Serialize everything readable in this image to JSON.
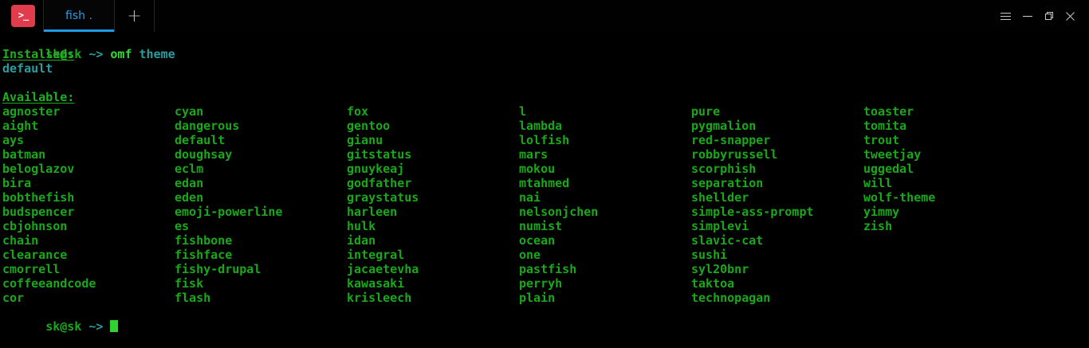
{
  "window": {
    "app_icon_glyph": ">_",
    "tab_title": "fish .",
    "new_tab_label": "+",
    "controls": {
      "menu": "menu",
      "minimize": "minimize",
      "restore": "restore",
      "close": "close"
    },
    "colors": {
      "app_icon_bg": "#e13c4c",
      "tab_text": "#2e9bdb",
      "active_tab_indicator": "#1e9be4",
      "terminal_bg": "#000000",
      "green": "#1aa81a",
      "bright_green": "#32d932",
      "teal": "#2a9d9e"
    }
  },
  "terminal": {
    "prompt": {
      "user": "sk@sk",
      "arrow": "~>"
    },
    "command": "omf",
    "command_arg": "theme",
    "installed_header": "Installed:",
    "installed_items": [
      "default"
    ],
    "available_header": "Available:",
    "theme_columns": [
      [
        "agnoster",
        "aight",
        "ays",
        "batman",
        "beloglazov",
        "bira",
        "bobthefish",
        "budspencer",
        "cbjohnson",
        "chain",
        "clearance",
        "cmorrell",
        "coffeeandcode",
        "cor"
      ],
      [
        "cyan",
        "dangerous",
        "default",
        "doughsay",
        "eclm",
        "edan",
        "eden",
        "emoji-powerline",
        "es",
        "fishbone",
        "fishface",
        "fishy-drupal",
        "fisk",
        "flash"
      ],
      [
        "fox",
        "gentoo",
        "gianu",
        "gitstatus",
        "gnuykeaj",
        "godfather",
        "graystatus",
        "harleen",
        "hulk",
        "idan",
        "integral",
        "jacaetevha",
        "kawasaki",
        "krisleech"
      ],
      [
        "l",
        "lambda",
        "lolfish",
        "mars",
        "mokou",
        "mtahmed",
        "nai",
        "nelsonjchen",
        "numist",
        "ocean",
        "one",
        "pastfish",
        "perryh",
        "plain"
      ],
      [
        "pure",
        "pygmalion",
        "red-snapper",
        "robbyrussell",
        "scorphish",
        "separation",
        "shellder",
        "simple-ass-prompt",
        "simplevi",
        "slavic-cat",
        "sushi",
        "syl20bnr",
        "taktoa",
        "technopagan"
      ],
      [
        "toaster",
        "tomita",
        "trout",
        "tweetjay",
        "uggedal",
        "will",
        "wolf-theme",
        "yimmy",
        "zish"
      ]
    ]
  }
}
